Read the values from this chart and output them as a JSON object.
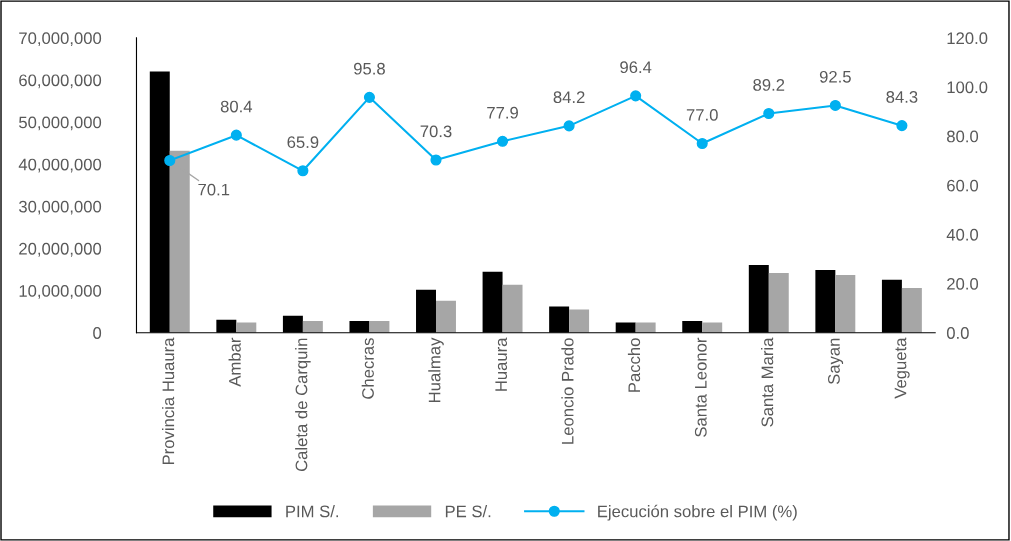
{
  "chart_data": {
    "type": "bar",
    "categories": [
      "Provincia Huaura",
      "Ambar",
      "Caleta de Carquin",
      "Checras",
      "Hualmay",
      "Huaura",
      "Leoncio Prado",
      "Paccho",
      "Santa Leonor",
      "Santa Maria",
      "Sayan",
      "Vegueta"
    ],
    "series": [
      {
        "name": "PIM S/.",
        "color": "#000000",
        "values": [
          62000000,
          3100000,
          4000000,
          2800000,
          10200000,
          14500000,
          6200000,
          2400000,
          2800000,
          16100000,
          14900000,
          12600000
        ]
      },
      {
        "name": "PE S/.",
        "color": "#a6a6a6",
        "values": [
          43200000,
          2400000,
          2800000,
          2800000,
          7600000,
          11400000,
          5500000,
          2400000,
          2400000,
          14200000,
          13700000,
          10600000
        ]
      },
      {
        "name": "Ejecución sobre el PIM (%)",
        "type": "line",
        "axis": "y2",
        "color": "#00b0f0",
        "marker": "circle",
        "values": [
          70.1,
          80.4,
          65.9,
          95.8,
          70.3,
          77.9,
          84.2,
          96.4,
          77,
          89.2,
          92.5,
          84.3
        ],
        "value_labels": [
          "70.1",
          "80.4",
          "65.9",
          "95.8",
          "70.3",
          "77.9",
          "84.2",
          "96.4",
          "77.0",
          "89.2",
          "92.5",
          "84.3"
        ]
      }
    ],
    "ylim": [
      0,
      70000000
    ],
    "yticks": [
      {
        "value": 0,
        "label": "0"
      },
      {
        "value": 10000000,
        "label": "10,000,000"
      },
      {
        "value": 20000000,
        "label": "20,000,000"
      },
      {
        "value": 30000000,
        "label": "30,000,000"
      },
      {
        "value": 40000000,
        "label": "40,000,000"
      },
      {
        "value": 50000000,
        "label": "50,000,000"
      },
      {
        "value": 60000000,
        "label": "60,000,000"
      },
      {
        "value": 70000000,
        "label": "70,000,000"
      }
    ],
    "y2lim": [
      0,
      120
    ],
    "y2ticks": [
      {
        "value": 0,
        "label": "0.0"
      },
      {
        "value": 20,
        "label": "20.0"
      },
      {
        "value": 40,
        "label": "40.0"
      },
      {
        "value": 60,
        "label": "60.0"
      },
      {
        "value": 80,
        "label": "80.0"
      },
      {
        "value": 100,
        "label": "100.0"
      },
      {
        "value": 120,
        "label": "120.0"
      }
    ],
    "grid": false,
    "legend": "bottom"
  }
}
